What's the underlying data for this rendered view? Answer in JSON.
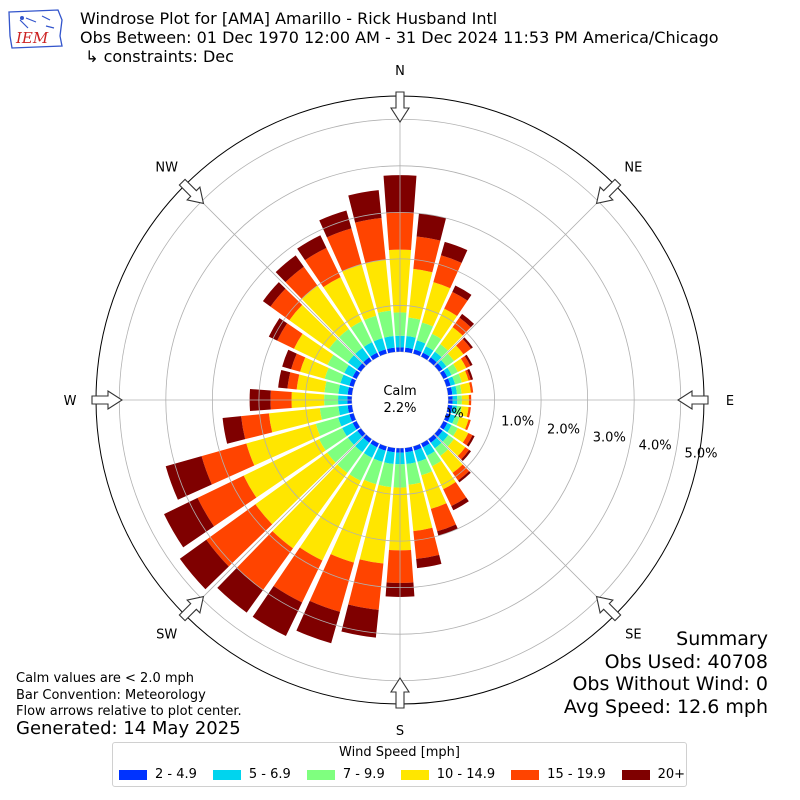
{
  "title": {
    "line1": "Windrose Plot for [AMA] Amarillo - Rick Husband Intl",
    "line2": "Obs Between: 01 Dec 1970 12:00 AM - 31 Dec 2024 11:53 PM America/Chicago",
    "line3": " ↳ constraints: Dec"
  },
  "logo": {
    "text": "IEM",
    "colors": {
      "text": "#cc2222",
      "outline": "#3355cc"
    }
  },
  "notes": {
    "line1": "Calm values are < 2.0 mph",
    "line2": "Bar Convention: Meteorology",
    "line3": "Flow arrows relative to plot center."
  },
  "generated": "Generated: 14 May 2025",
  "summary": {
    "heading": "Summary",
    "obs_used": "Obs Used: 40708",
    "obs_without_wind": "Obs Without Wind: 0",
    "avg_speed": "Avg Speed: 12.6 mph"
  },
  "chart_data": {
    "type": "windrose",
    "compass_labels": [
      "N",
      "NE",
      "E",
      "SE",
      "S",
      "SW",
      "W",
      "NW"
    ],
    "radial_tick_labels": [
      "0.0%",
      "1.0%",
      "2.0%",
      "3.0%",
      "4.0%",
      "5.0%"
    ],
    "calm_label": "Calm",
    "calm_value": "2.2%",
    "calm_percent": 2.2,
    "rlim": [
      0,
      5.5
    ],
    "legend_title": "Wind Speed [mph]",
    "bins": [
      "2 - 4.9",
      "5 - 6.9",
      "7 - 9.9",
      "10 - 14.9",
      "15 - 19.9",
      "20+"
    ],
    "colors": [
      "#0033ff",
      "#00d4ee",
      "#7fff7f",
      "#ffe600",
      "#ff4400",
      "#7f0000"
    ],
    "directions_deg": [
      0,
      10,
      20,
      30,
      40,
      50,
      60,
      70,
      80,
      90,
      100,
      110,
      120,
      130,
      140,
      150,
      160,
      170,
      180,
      190,
      200,
      210,
      220,
      230,
      240,
      250,
      260,
      270,
      280,
      290,
      300,
      310,
      320,
      330,
      340,
      350
    ],
    "cumulative_percent": [
      [
        0.1,
        0.35,
        0.85,
        2.2,
        3.0,
        3.8
      ],
      [
        0.1,
        0.35,
        0.75,
        1.8,
        2.5,
        3.0
      ],
      [
        0.1,
        0.3,
        0.7,
        1.6,
        2.2,
        2.5
      ],
      [
        0.1,
        0.25,
        0.55,
        1.15,
        1.55,
        1.7
      ],
      [
        0.1,
        0.25,
        0.45,
        0.9,
        1.15,
        1.25
      ],
      [
        0.1,
        0.2,
        0.4,
        0.65,
        0.85,
        0.9
      ],
      [
        0.1,
        0.2,
        0.35,
        0.55,
        0.65,
        0.7
      ],
      [
        0.1,
        0.2,
        0.35,
        0.5,
        0.55,
        0.6
      ],
      [
        0.1,
        0.2,
        0.3,
        0.5,
        0.55,
        0.55
      ],
      [
        0.1,
        0.2,
        0.3,
        0.45,
        0.5,
        0.5
      ],
      [
        0.1,
        0.2,
        0.3,
        0.45,
        0.5,
        0.5
      ],
      [
        0.1,
        0.2,
        0.3,
        0.5,
        0.55,
        0.55
      ],
      [
        0.1,
        0.2,
        0.35,
        0.6,
        0.7,
        0.75
      ],
      [
        0.1,
        0.25,
        0.4,
        0.7,
        0.8,
        0.85
      ],
      [
        0.1,
        0.25,
        0.45,
        0.9,
        1.1,
        1.15
      ],
      [
        0.1,
        0.3,
        0.55,
        1.1,
        1.5,
        1.6
      ],
      [
        0.1,
        0.35,
        0.65,
        1.4,
        1.9,
        2.0
      ],
      [
        0.1,
        0.35,
        0.8,
        1.8,
        2.4,
        2.6
      ],
      [
        0.1,
        0.35,
        0.85,
        2.2,
        2.9,
        3.2
      ],
      [
        0.1,
        0.35,
        0.85,
        2.5,
        3.5,
        4.1
      ],
      [
        0.1,
        0.35,
        0.85,
        2.6,
        3.7,
        4.4
      ],
      [
        0.1,
        0.35,
        0.9,
        2.8,
        3.8,
        4.6
      ],
      [
        0.1,
        0.35,
        0.9,
        2.9,
        4.0,
        4.6
      ],
      [
        0.1,
        0.35,
        0.9,
        2.8,
        4.1,
        4.8
      ],
      [
        0.1,
        0.35,
        0.9,
        2.7,
        3.8,
        4.6
      ],
      [
        0.1,
        0.35,
        0.85,
        2.4,
        3.4,
        4.2
      ],
      [
        0.1,
        0.3,
        0.7,
        1.8,
        2.4,
        2.8
      ],
      [
        0.1,
        0.3,
        0.6,
        1.3,
        1.75,
        2.2
      ],
      [
        0.1,
        0.3,
        0.6,
        1.2,
        1.4,
        1.6
      ],
      [
        0.1,
        0.3,
        0.65,
        1.2,
        1.4,
        1.6
      ],
      [
        0.1,
        0.3,
        0.7,
        1.5,
        1.9,
        2.1
      ],
      [
        0.1,
        0.35,
        0.85,
        1.9,
        2.4,
        2.6
      ],
      [
        0.1,
        0.35,
        0.85,
        2.0,
        2.5,
        2.8
      ],
      [
        0.1,
        0.35,
        0.85,
        1.9,
        2.6,
        2.9
      ],
      [
        0.1,
        0.35,
        0.85,
        2.0,
        2.8,
        3.2
      ],
      [
        0.1,
        0.35,
        0.9,
        2.0,
        2.9,
        3.5
      ]
    ]
  }
}
